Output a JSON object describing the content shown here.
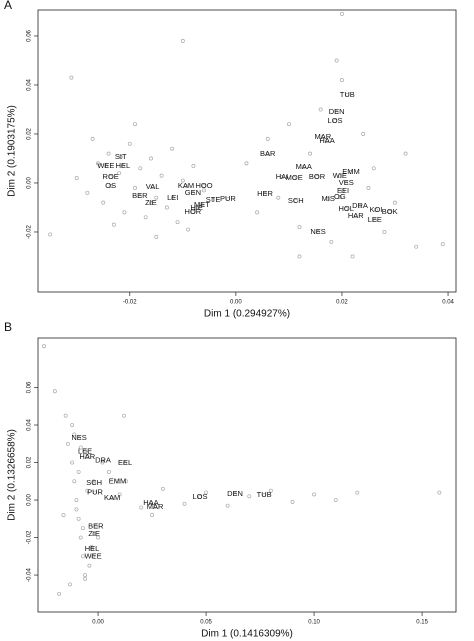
{
  "chart_data": [
    {
      "type": "scatter",
      "panel_label": "A",
      "xlabel": "Dim 1 (0.294927%)",
      "ylabel": "Dim 2 (0.1903175%)",
      "color": "#a8a8a8",
      "xlim": [
        -0.0373,
        0.0415
      ],
      "ylim": [
        -0.0445,
        0.0706
      ],
      "xticks": [
        -0.02,
        {
          "value": 0,
          "label": "0.00"
        },
        0.02,
        0.04
      ],
      "yticks": [
        -0.02,
        {
          "value": 0,
          "label": "0.00"
        },
        0.02,
        0.04,
        0.06
      ],
      "x": [
        -0.03,
        -0.028,
        -0.026,
        -0.025,
        -0.024,
        -0.022,
        -0.021,
        -0.02,
        -0.019,
        -0.018,
        -0.017,
        -0.016,
        -0.015,
        -0.014,
        -0.013,
        -0.012,
        -0.011,
        -0.01,
        -0.009,
        -0.008,
        -0.027,
        -0.023,
        -0.019,
        -0.015,
        -0.006,
        0.002,
        0.004,
        0.006,
        0.008,
        0.01,
        0.012,
        0.014,
        0.016,
        0.018,
        0.02,
        0.022,
        0.024,
        0.026,
        0.028,
        0.03,
        0.032,
        0.034,
        0.012,
        0.019,
        0.025,
        -0.035,
        -0.031,
        -0.01,
        0.02,
        0.039
      ],
      "y": [
        0.002,
        -0.004,
        0.008,
        -0.008,
        0.012,
        0.004,
        -0.012,
        0.016,
        -0.002,
        0.006,
        -0.014,
        0.01,
        -0.006,
        0.003,
        -0.01,
        0.014,
        -0.016,
        0.001,
        -0.019,
        0.007,
        0.018,
        -0.017,
        0.024,
        -0.022,
        -0.003,
        0.008,
        -0.012,
        0.018,
        -0.006,
        0.024,
        -0.018,
        0.012,
        0.03,
        -0.024,
        0.042,
        -0.03,
        0.02,
        0.006,
        -0.02,
        -0.008,
        0.012,
        -0.026,
        -0.03,
        0.05,
        -0.002,
        -0.021,
        0.043,
        0.058,
        0.069,
        -0.025
      ],
      "labeled_points": {
        "labels": [
          "TUB",
          "DEN",
          "LOS",
          "MAR",
          "HAA",
          "BAR",
          "MAA",
          "HAI",
          "MOE",
          "BOR",
          "WIE",
          "EMM",
          "VES",
          "EEI",
          "MIS",
          "OG",
          "HOL",
          "DRA",
          "KOI",
          "BOK",
          "HAR",
          "LEE",
          "NES",
          "HER",
          "SCH",
          "SIT",
          "HEL",
          "WEE",
          "ROE",
          "OS",
          "VAL",
          "BER",
          "ZIE",
          "LEI",
          "KAM",
          "HOO",
          "GEN",
          "STE",
          "PUR",
          "MET",
          "HIE",
          "HOR"
        ],
        "x": [
          0.021,
          0.019,
          0.0187,
          0.0164,
          0.0172,
          0.006,
          0.0128,
          0.0087,
          0.011,
          0.0153,
          0.0196,
          0.0217,
          0.0208,
          0.0202,
          0.0174,
          0.0196,
          0.0208,
          0.0234,
          0.0264,
          0.029,
          0.0226,
          0.0262,
          0.0155,
          0.0055,
          0.0113,
          -0.0217,
          -0.0213,
          -0.0245,
          -0.0236,
          -0.0236,
          -0.0157,
          -0.0181,
          -0.016,
          -0.0119,
          -0.0094,
          -0.006,
          -0.0081,
          -0.0043,
          -0.0015,
          -0.0064,
          -0.0074,
          -0.0081
        ],
        "y": [
          0.036,
          0.029,
          0.0253,
          0.0188,
          0.0171,
          0.0118,
          0.0065,
          0.0024,
          0.002,
          0.0024,
          0.0029,
          0.0045,
          0.0,
          -0.0033,
          -0.0065,
          -0.0057,
          -0.0106,
          -0.0094,
          -0.011,
          -0.0118,
          -0.0135,
          -0.0151,
          -0.02,
          -0.0045,
          -0.0073,
          0.0106,
          0.0069,
          0.0069,
          0.0024,
          -0.0012,
          -0.0016,
          -0.0053,
          -0.0082,
          -0.0061,
          -0.0012,
          -0.0012,
          -0.0041,
          -0.0069,
          -0.0065,
          -0.009,
          -0.0102,
          -0.0118
        ]
      }
    },
    {
      "type": "scatter",
      "panel_label": "B",
      "xlabel": "Dim 1 (0.1416309%)",
      "ylabel": "Dim 2 (0.1326658%)",
      "color": "#a8a8a8",
      "xlim": [
        -0.0278,
        0.1657
      ],
      "ylim": [
        -0.0597,
        0.0864
      ],
      "xticks": [
        {
          "value": 0,
          "label": "0.00"
        },
        0.05,
        {
          "value": 0.1,
          "label": "0.10"
        },
        0.15
      ],
      "yticks": [
        -0.04,
        -0.02,
        {
          "value": 0,
          "label": "0.00"
        },
        0.02,
        0.04,
        0.06
      ],
      "x": [
        -0.014,
        -0.012,
        -0.011,
        -0.01,
        -0.009,
        -0.008,
        -0.007,
        -0.006,
        -0.005,
        -0.004,
        -0.013,
        -0.011,
        -0.009,
        -0.007,
        -0.005,
        -0.003,
        -0.012,
        -0.01,
        -0.008,
        -0.006,
        -0.002,
        0.0,
        0.002,
        -0.015,
        -0.016,
        0.01,
        0.02,
        0.03,
        0.04,
        0.05,
        0.06,
        0.07,
        0.08,
        0.09,
        0.1,
        0.11,
        0.12,
        0.013,
        0.025,
        0.005,
        -0.025,
        -0.02,
        0.158,
        0.012,
        -0.018
      ],
      "y": [
        0.03,
        0.02,
        0.01,
        0.0,
        -0.01,
        -0.02,
        -0.03,
        -0.04,
        0.025,
        -0.035,
        -0.045,
        0.035,
        0.015,
        -0.015,
        0.005,
        -0.025,
        0.04,
        -0.005,
        0.028,
        -0.042,
        0.01,
        -0.02,
        0.02,
        0.045,
        -0.008,
        0.003,
        -0.004,
        0.006,
        -0.002,
        0.004,
        -0.003,
        0.002,
        0.005,
        -0.001,
        0.003,
        0.0,
        0.004,
        0.01,
        -0.008,
        0.015,
        0.082,
        0.058,
        0.004,
        0.045,
        -0.05
      ],
      "labeled_points": {
        "labels": [
          "NES",
          "LEE",
          "HAR",
          "DRA",
          "EEL",
          "EMM",
          "KAM",
          "SCH",
          "PUR",
          "BER",
          "ZIE",
          "HEL",
          "WEE",
          "LOS",
          "DEN",
          "TUB",
          "HAA",
          "MAR"
        ],
        "x": [
          -0.0088,
          -0.006,
          -0.005,
          0.0023,
          0.0125,
          0.009,
          0.0065,
          -0.0018,
          -0.0014,
          -0.001,
          -0.0018,
          -0.0028,
          -0.0023,
          0.0472,
          0.0634,
          0.0769,
          0.0245,
          0.0264
        ],
        "y": [
          0.033,
          0.026,
          0.023,
          0.021,
          0.0197,
          0.01,
          0.001,
          0.009,
          0.004,
          -0.014,
          -0.018,
          -0.026,
          -0.03,
          0.0016,
          0.0032,
          0.0027,
          -0.0016,
          -0.0037
        ]
      }
    }
  ]
}
